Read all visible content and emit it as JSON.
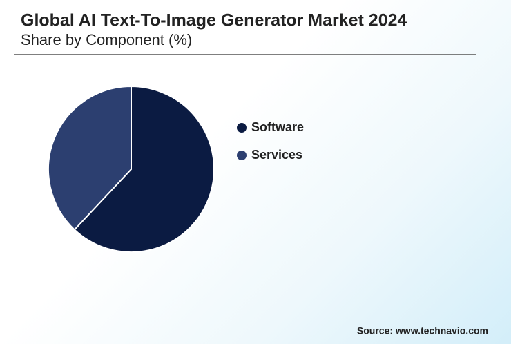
{
  "chart_data": {
    "type": "pie",
    "title": "Global AI Text-To-Image Generator Market 2024",
    "subtitle": "Share by Component (%)",
    "categories": [
      "Software",
      "Services"
    ],
    "values": [
      62,
      38
    ],
    "colors": [
      "#0b1b42",
      "#2c3f70"
    ],
    "source": "Source: www.technavio.com"
  }
}
